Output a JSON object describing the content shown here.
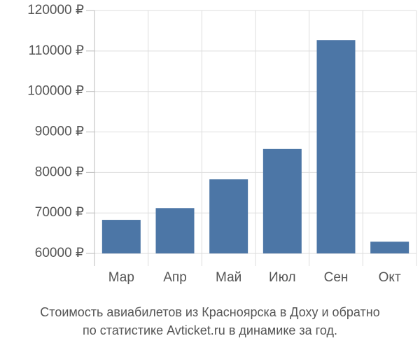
{
  "chart_data": {
    "type": "bar",
    "title": [
      "Стоимость авиабилетов из Красноярска в Доху и обратно",
      "по статистике Avticket.ru в динамике за год."
    ],
    "categories": [
      "Мар",
      "Апр",
      "Май",
      "Июл",
      "Сен",
      "Окт"
    ],
    "values": [
      68300,
      71200,
      78300,
      85800,
      112700,
      62900
    ],
    "color": "#4c76a6",
    "ylim": [
      56900,
      120000
    ],
    "yticks": [
      {
        "value": 60000,
        "label": "60000 ₽"
      },
      {
        "value": 70000,
        "label": "70000 ₽"
      },
      {
        "value": 80000,
        "label": "80000 ₽"
      },
      {
        "value": 90000,
        "label": "90000 ₽"
      },
      {
        "value": 100000,
        "label": "100000 ₽"
      },
      {
        "value": 110000,
        "label": "110000 ₽"
      },
      {
        "value": 120000,
        "label": "120000 ₽"
      }
    ],
    "grid": true
  }
}
